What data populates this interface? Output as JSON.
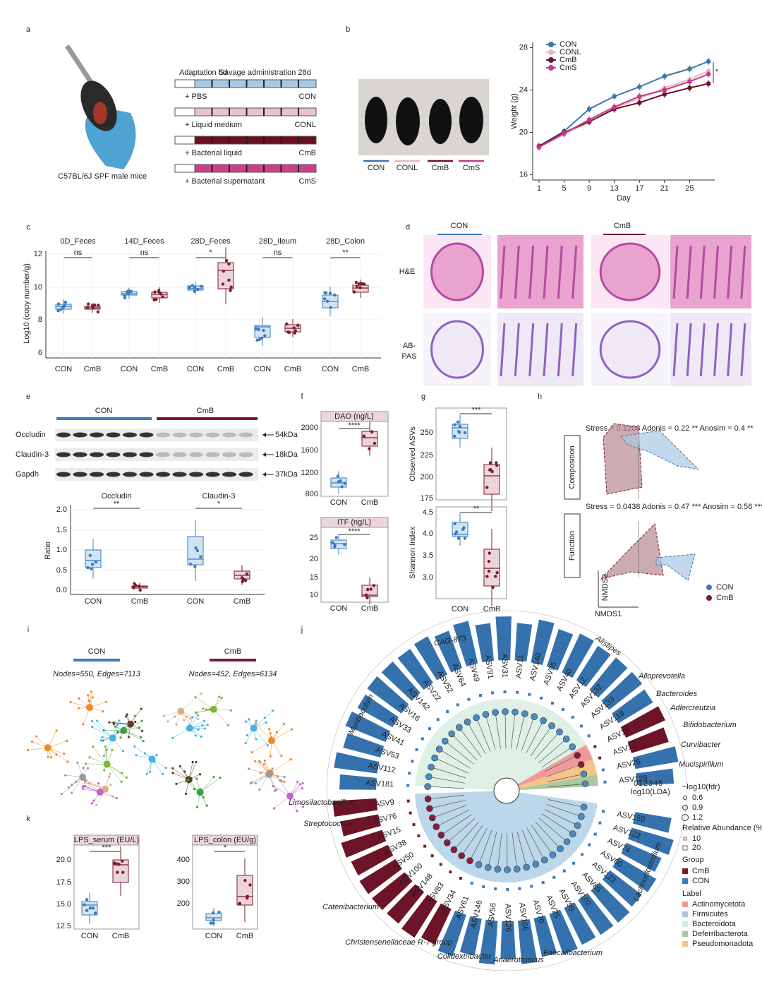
{
  "a": {
    "letter": "a",
    "mice": "C57BL/6J SPF male mice",
    "adaptation": "Adaptation 5d",
    "gavage": "Gavage administration 28d",
    "groups": [
      {
        "treatment": "+ PBS",
        "name": "CON"
      },
      {
        "treatment": "+ Liquid medium",
        "name": "CONL"
      },
      {
        "treatment": "+ Bacterial liquid",
        "name": "CmB"
      },
      {
        "treatment": "+ Bacterial supernatant",
        "name": "CmS"
      }
    ]
  },
  "b": {
    "letter": "b",
    "photo_labels": [
      "CON",
      "CONL",
      "CmB",
      "CmS"
    ],
    "chart": {
      "type": "line",
      "x": [
        1,
        5,
        9,
        13,
        17,
        21,
        25,
        28
      ],
      "series": [
        {
          "name": "CON",
          "color": "#3a76af",
          "values": [
            18.7,
            20.1,
            22.2,
            23.4,
            24.3,
            25.3,
            26.0,
            26.7
          ]
        },
        {
          "name": "CONL",
          "color": "#e6b7c4",
          "values": [
            18.6,
            19.8,
            21.0,
            22.3,
            23.2,
            24.2,
            25.0,
            25.8
          ]
        },
        {
          "name": "CmB",
          "color": "#6e1429",
          "values": [
            18.7,
            20.0,
            21.0,
            22.2,
            22.8,
            23.6,
            24.2,
            24.6
          ]
        },
        {
          "name": "CmS",
          "color": "#c8378a",
          "values": [
            18.6,
            19.9,
            21.2,
            22.4,
            23.4,
            24.0,
            24.8,
            25.5
          ]
        }
      ],
      "xlim": [
        0,
        29
      ],
      "xticks": [
        1,
        5,
        9,
        13,
        17,
        21,
        25
      ],
      "ylim": [
        15.5,
        28.5
      ],
      "yticks": [
        16,
        20,
        24,
        28
      ],
      "xlabel": "Day",
      "ylabel": "Weight (g)",
      "annotation": "*"
    }
  },
  "c": {
    "letter": "c",
    "ylabel": "Log10 (copy number/g)",
    "yticks": [
      "6",
      "8",
      "10",
      "12"
    ],
    "xlabels": [
      "CON",
      "CmB"
    ],
    "panels": [
      {
        "title": "0D_Feces",
        "sig": "ns"
      },
      {
        "title": "14D_Feces",
        "sig": "ns"
      },
      {
        "title": "28D_Feces",
        "sig": "*"
      },
      {
        "title": "28D_Ileum",
        "sig": "ns"
      },
      {
        "title": "28D_Colon",
        "sig": "**"
      }
    ]
  },
  "d": {
    "letter": "d",
    "groups": [
      "CON",
      "CmB"
    ],
    "stains": [
      [
        "H&E"
      ],
      [
        "AB-",
        "PAS"
      ]
    ]
  },
  "e": {
    "letter": "e",
    "groups": [
      "CON",
      "CmB"
    ],
    "blots": [
      {
        "protein": "Occludin",
        "size": "54kDa"
      },
      {
        "protein": "Claudin-3",
        "size": "18kDa"
      },
      {
        "protein": "Gapdh",
        "size": "37kDa"
      }
    ],
    "ylabel": "Ratio",
    "yticks": [
      "0.0",
      "0.5",
      "1.0",
      "1.5",
      "2.0"
    ],
    "xlabels": [
      "CON",
      "CmB"
    ],
    "panels": [
      {
        "title": "Occludin",
        "sig": "**"
      },
      {
        "title": "Claudin-3",
        "sig": "*"
      }
    ]
  },
  "f": {
    "letter": "f",
    "xlabels": [
      "CON",
      "CmB"
    ],
    "panels": [
      {
        "title": "DAO (ng/L)",
        "sig": "****",
        "yticks": [
          "2000",
          "1600",
          "1200",
          "800"
        ]
      },
      {
        "title": "ITF (ng/L)",
        "sig": "****",
        "yticks": [
          "25",
          "20",
          "15",
          "10"
        ]
      }
    ]
  },
  "g": {
    "letter": "g",
    "xlabels": [
      "CON",
      "CmB"
    ],
    "panels": [
      {
        "ylabel": "Observed ASVs",
        "sig": "***",
        "yticks": [
          "250",
          "225",
          "200",
          "175"
        ]
      },
      {
        "ylabel": "Shannon Index",
        "sig": "**",
        "yticks": [
          "4.5",
          "4.0",
          "3.5",
          "3.0"
        ]
      }
    ]
  },
  "h": {
    "letter": "h",
    "xaxis": "NMDS1",
    "yaxis": "NMDS2",
    "legend": [
      "CON",
      "CmB"
    ],
    "panels": [
      {
        "label": "Composition",
        "stats": "Stress = 0.1208 Adonis = 0.22 ** Anosim = 0.4 **"
      },
      {
        "label": "Function",
        "stats": "Stress = 0.0438 Adonis = 0.47 *** Anosim = 0.56 ***"
      }
    ]
  },
  "i": {
    "letter": "i",
    "networks": [
      {
        "group": "CON",
        "stats": "Nodes=550, Edges=7113"
      },
      {
        "group": "CmB",
        "stats": "Nodes=452, Edges=6134"
      }
    ]
  },
  "j": {
    "letter": "j",
    "asvs_top": [
      "ASV181",
      "ASV112",
      "ASV53",
      "ASV41",
      "ASV33",
      "ASV16",
      "ASV142",
      "ASV22",
      "ASV52",
      "ASV64",
      "ASV49",
      "ASV91",
      "ASV31",
      "ASV11",
      "ASV140",
      "ASV95",
      "ASV40",
      "ASV12",
      "ASV132",
      "ASV133",
      "ASV118",
      "ASV18",
      "ASV13",
      "ASV26",
      "ASV129"
    ],
    "asvs_bottom": [
      "ASV150",
      "ASV122",
      "ASV74",
      "ASV60",
      "ASV123",
      "ASV85",
      "ASV102",
      "ASV99",
      "ASV25",
      "ASV70",
      "ASV106",
      "ASV126",
      "ASV56",
      "ASV146",
      "ASV61",
      "ASV34",
      "ASV83",
      "ASV148",
      "ASV100",
      "ASV50",
      "ASV38",
      "ASV15",
      "ASV76",
      "ASV9"
    ],
    "taxa": [
      "CAG-873",
      "Alistipes",
      "Alloprevotella",
      "Bacteroides",
      "Adlercreutzia",
      "Bifidobacterium",
      "Curvibacter",
      "Mucispirillum",
      "Muribaculum",
      "Limosilactobacillus",
      "Streptococcus",
      "Catenibacterium",
      "Christensenellaceae R-7 group",
      "Colidextribacter",
      "Anaerotruncus",
      "Faecalibacterium",
      "Lachnoclostridium"
    ],
    "lda_ticks": [
      "0",
      "1",
      "2",
      "3",
      "4",
      "5"
    ],
    "lda_label": "log10(LDA)",
    "legend": {
      "fdr_title": "−log10(fdr)",
      "fdr": [
        "0.6",
        "0.9",
        "1.2"
      ],
      "abundance_title": "Relative Abundance (%)",
      "abundance": [
        "10",
        "20"
      ],
      "group_title": "Group",
      "groups": [
        "CmB",
        "CON"
      ],
      "label_title": "Label",
      "labels": [
        "Actinomycetota",
        "Firmicutes",
        "Bacteroidota",
        "Deferribacterota",
        "Pseudomonadota"
      ]
    }
  },
  "k": {
    "letter": "k",
    "xlabels": [
      "CON",
      "CmB"
    ],
    "panels": [
      {
        "title": "LPS_serum (EU/L)",
        "sig": "***",
        "yticks": [
          "20.0",
          "17.5",
          "15.0",
          "12.5"
        ]
      },
      {
        "title": "LPS_colon (EU/g)",
        "sig": "*",
        "yticks": [
          "400",
          "300",
          "200"
        ]
      }
    ]
  }
}
